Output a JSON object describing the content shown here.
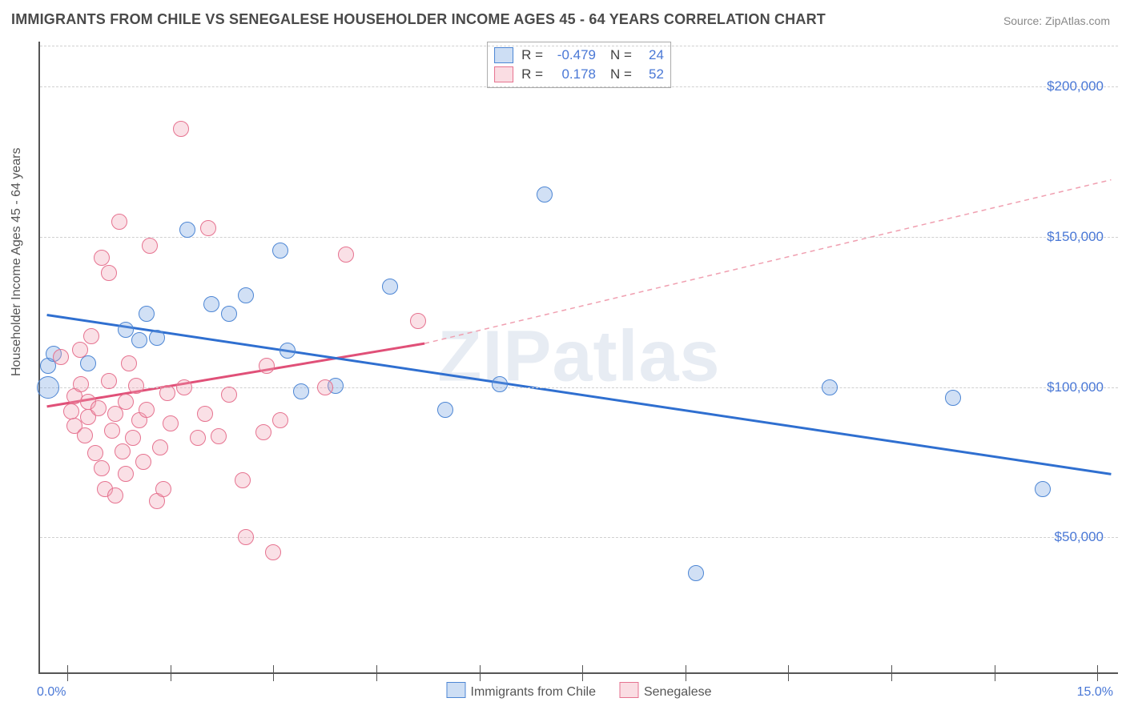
{
  "title": "IMMIGRANTS FROM CHILE VS SENEGALESE HOUSEHOLDER INCOME AGES 45 - 64 YEARS CORRELATION CHART",
  "source": "Source: ZipAtlas.com",
  "ylabel": "Householder Income Ages 45 - 64 years",
  "watermark": "ZIPatlas",
  "chart": {
    "type": "scatter",
    "background_color": "#ffffff",
    "grid_color": "#d0d0d0",
    "grid_dash": "4 4",
    "axis_color": "#555555",
    "xlim": [
      -0.4,
      15.3
    ],
    "ylim": [
      5000,
      215000
    ],
    "x_tick_positions": [
      0,
      1.5,
      3.0,
      4.5,
      6.0,
      7.5,
      9.0,
      10.5,
      12.0,
      13.5,
      15.0
    ],
    "x_tick_labels_visible": {
      "0": "0.0%",
      "15": "15.0%"
    },
    "y_gridlines": [
      50000,
      100000,
      150000,
      200000
    ],
    "y_tick_labels": [
      "$50,000",
      "$100,000",
      "$150,000",
      "$200,000"
    ],
    "ylabel_color": "#4a78d6",
    "xlabel_color": "#4a78d6",
    "label_fontsize": 16,
    "title_fontsize": 18,
    "title_color": "#4a4a4a",
    "point_radius": 10,
    "point_border_width": 1.2,
    "point_fill_opacity": 0.32,
    "series": [
      {
        "name": "Immigrants from Chile",
        "color": "#6fa0e0",
        "border_color": "#4d86d4",
        "R": -0.479,
        "N": 24,
        "trend": {
          "x1": -0.3,
          "y1": 124000,
          "x2": 15.2,
          "y2": 71000,
          "width": 3,
          "dash": null
        },
        "points": [
          {
            "x": -0.28,
            "y": 100000,
            "r": 14
          },
          {
            "x": -0.28,
            "y": 107000
          },
          {
            "x": -0.2,
            "y": 111000
          },
          {
            "x": 0.3,
            "y": 108000
          },
          {
            "x": 0.85,
            "y": 119000
          },
          {
            "x": 1.05,
            "y": 115500
          },
          {
            "x": 1.15,
            "y": 124500
          },
          {
            "x": 1.3,
            "y": 116500
          },
          {
            "x": 1.75,
            "y": 152500
          },
          {
            "x": 2.1,
            "y": 127500
          },
          {
            "x": 2.35,
            "y": 124500
          },
          {
            "x": 2.6,
            "y": 130500
          },
          {
            "x": 3.1,
            "y": 145500
          },
          {
            "x": 3.2,
            "y": 112000
          },
          {
            "x": 3.4,
            "y": 98500
          },
          {
            "x": 3.9,
            "y": 100500
          },
          {
            "x": 4.7,
            "y": 133500
          },
          {
            "x": 5.5,
            "y": 92500
          },
          {
            "x": 6.3,
            "y": 101000
          },
          {
            "x": 6.95,
            "y": 164000
          },
          {
            "x": 9.15,
            "y": 38000
          },
          {
            "x": 11.1,
            "y": 100000
          },
          {
            "x": 12.9,
            "y": 96500
          },
          {
            "x": 14.2,
            "y": 66000
          }
        ]
      },
      {
        "name": "Senegalese",
        "color": "#f09fb0",
        "border_color": "#e67390",
        "R": 0.178,
        "N": 52,
        "trend_solid": {
          "x1": -0.3,
          "y1": 93500,
          "x2": 5.2,
          "y2": 114500,
          "width": 3
        },
        "trend_dash": {
          "x1": 5.2,
          "y1": 114500,
          "x2": 15.2,
          "y2": 169000,
          "width": 1.5,
          "dash": "6 5"
        },
        "points": [
          {
            "x": -0.1,
            "y": 110000
          },
          {
            "x": 0.05,
            "y": 92000
          },
          {
            "x": 0.1,
            "y": 97000
          },
          {
            "x": 0.1,
            "y": 87000
          },
          {
            "x": 0.18,
            "y": 112500
          },
          {
            "x": 0.2,
            "y": 101000
          },
          {
            "x": 0.25,
            "y": 84000
          },
          {
            "x": 0.3,
            "y": 95000
          },
          {
            "x": 0.3,
            "y": 90000
          },
          {
            "x": 0.35,
            "y": 117000
          },
          {
            "x": 0.4,
            "y": 78000
          },
          {
            "x": 0.45,
            "y": 93000
          },
          {
            "x": 0.5,
            "y": 73000
          },
          {
            "x": 0.5,
            "y": 143000
          },
          {
            "x": 0.55,
            "y": 66000
          },
          {
            "x": 0.6,
            "y": 102000
          },
          {
            "x": 0.6,
            "y": 138000
          },
          {
            "x": 0.65,
            "y": 85500
          },
          {
            "x": 0.7,
            "y": 91000
          },
          {
            "x": 0.7,
            "y": 64000
          },
          {
            "x": 0.75,
            "y": 155000
          },
          {
            "x": 0.8,
            "y": 78500
          },
          {
            "x": 0.85,
            "y": 95000
          },
          {
            "x": 0.85,
            "y": 71000
          },
          {
            "x": 0.9,
            "y": 108000
          },
          {
            "x": 0.95,
            "y": 83000
          },
          {
            "x": 1.0,
            "y": 100500
          },
          {
            "x": 1.05,
            "y": 89000
          },
          {
            "x": 1.1,
            "y": 75000
          },
          {
            "x": 1.15,
            "y": 92500
          },
          {
            "x": 1.2,
            "y": 147000
          },
          {
            "x": 1.3,
            "y": 62000
          },
          {
            "x": 1.35,
            "y": 80000
          },
          {
            "x": 1.4,
            "y": 66000
          },
          {
            "x": 1.45,
            "y": 98000
          },
          {
            "x": 1.5,
            "y": 88000
          },
          {
            "x": 1.65,
            "y": 186000
          },
          {
            "x": 1.7,
            "y": 100000
          },
          {
            "x": 1.9,
            "y": 83000
          },
          {
            "x": 2.0,
            "y": 91000
          },
          {
            "x": 2.05,
            "y": 153000
          },
          {
            "x": 2.2,
            "y": 83500
          },
          {
            "x": 2.35,
            "y": 97500
          },
          {
            "x": 2.55,
            "y": 69000
          },
          {
            "x": 2.6,
            "y": 50000
          },
          {
            "x": 2.85,
            "y": 85000
          },
          {
            "x": 2.9,
            "y": 107000
          },
          {
            "x": 3.0,
            "y": 45000
          },
          {
            "x": 3.1,
            "y": 89000
          },
          {
            "x": 3.75,
            "y": 100000
          },
          {
            "x": 4.05,
            "y": 144000
          },
          {
            "x": 5.1,
            "y": 122000
          }
        ]
      }
    ],
    "legend_top": {
      "rows": [
        {
          "swatch_fill": "rgba(111,160,224,0.35)",
          "swatch_border": "#4d86d4",
          "R_label": "R =",
          "R_val": "-0.479",
          "N_label": "N =",
          "N_val": "24"
        },
        {
          "swatch_fill": "rgba(240,159,176,0.35)",
          "swatch_border": "#e67390",
          "R_label": "R =",
          "R_val": "0.178",
          "N_label": "N =",
          "N_val": "52"
        }
      ]
    },
    "legend_bottom": [
      {
        "swatch_fill": "rgba(111,160,224,0.35)",
        "swatch_border": "#4d86d4",
        "label": "Immigrants from Chile"
      },
      {
        "swatch_fill": "rgba(240,159,176,0.35)",
        "swatch_border": "#e67390",
        "label": "Senegalese"
      }
    ]
  }
}
